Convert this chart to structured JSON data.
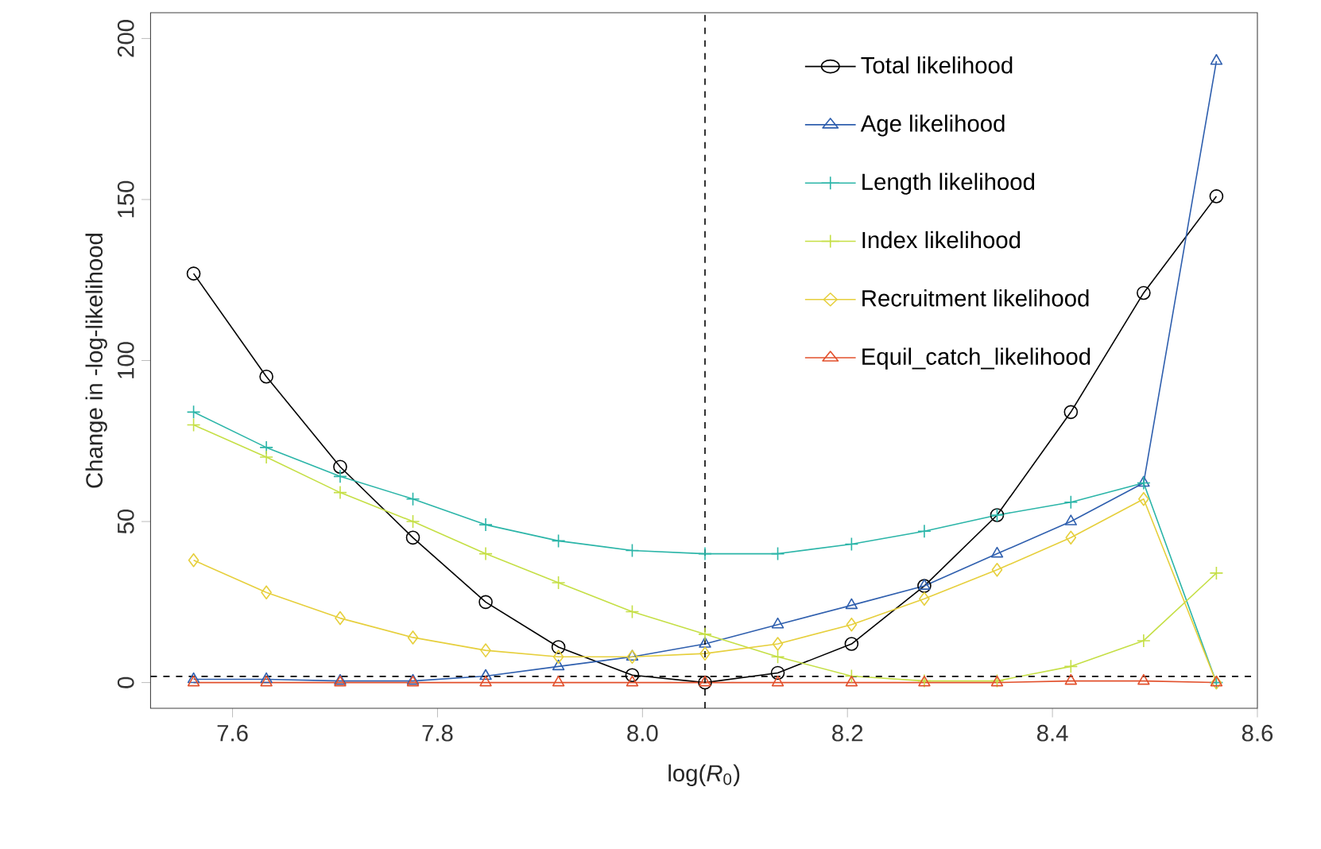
{
  "chart_data": {
    "type": "line",
    "xlabel": "log(*R*$_{0}$)",
    "ylabel": "Change in -log-likelihood",
    "x": [
      7.562,
      7.633,
      7.705,
      7.776,
      7.847,
      7.918,
      7.99,
      8.061,
      8.132,
      8.204,
      8.275,
      8.346,
      8.418,
      8.489,
      8.56
    ],
    "series": [
      {
        "name": "Total likelihood",
        "color": "#000000",
        "marker": "circle",
        "values": [
          127,
          95,
          67,
          45,
          25,
          11,
          2.3,
          0,
          3,
          12,
          30,
          52,
          84,
          121,
          151
        ]
      },
      {
        "name": "Age likelihood",
        "color": "#2f5fae",
        "marker": "triangle",
        "values": [
          1,
          1,
          0.5,
          0.5,
          2,
          5,
          8,
          12,
          18,
          24,
          30,
          40,
          50,
          62,
          193
        ]
      },
      {
        "name": "Length likelihood",
        "color": "#2bb5a8",
        "marker": "cross",
        "values": [
          84,
          73,
          64,
          57,
          49,
          44,
          41,
          40,
          40,
          43,
          47,
          52,
          56,
          62,
          0
        ]
      },
      {
        "name": "Index likelihood",
        "color": "#c5df45",
        "marker": "cross",
        "values": [
          80,
          70,
          59,
          50,
          40,
          31,
          22,
          15,
          8,
          2,
          0.5,
          0.5,
          5,
          13,
          34
        ]
      },
      {
        "name": "Recruitment likelihood",
        "color": "#e6cf3c",
        "marker": "diamond",
        "values": [
          38,
          28,
          20,
          14,
          10,
          8,
          8,
          9,
          12,
          18,
          26,
          35,
          45,
          57,
          0
        ]
      },
      {
        "name": "Equil_catch_likelihood",
        "color": "#e2502c",
        "marker": "triangle",
        "values": [
          0,
          0,
          0,
          0,
          0,
          0,
          0,
          0,
          0,
          0,
          0,
          0,
          0.5,
          0.5,
          0
        ]
      }
    ],
    "xlim": [
      7.52,
      8.6
    ],
    "ylim": [
      -8,
      208
    ],
    "xticks": [
      7.6,
      7.8,
      {
        "value": 8,
        "label": "8.0"
      },
      8.2,
      8.4,
      8.6
    ],
    "yticks": [
      0,
      50,
      100,
      150,
      200
    ],
    "ref_lines": [
      {
        "axis": "x",
        "value": 8.061,
        "line_style": "dashed",
        "color": "#000000"
      },
      {
        "axis": "y",
        "value": 1.92,
        "line_style": "dashed",
        "color": "#000000"
      }
    ],
    "legend": "top right",
    "grid": false
  }
}
